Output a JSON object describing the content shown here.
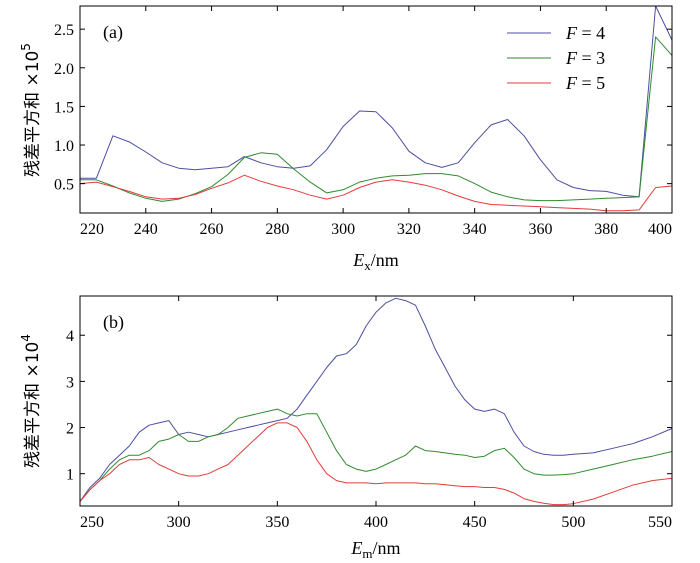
{
  "colors": {
    "blue": "#4b4fa1",
    "green": "#2f8a2f",
    "red": "#e53b3b"
  },
  "chart_data": [
    {
      "type": "line",
      "panel_label": "(a)",
      "xlabel_main": "E",
      "xlabel_sub": "x",
      "xlabel_unit": "/nm",
      "ylabel_text": "残差平方和 ×10",
      "ylabel_exp": "5",
      "xlim": [
        220,
        400
      ],
      "ylim": [
        0.12,
        2.8
      ],
      "x_ticks": [
        "220",
        "240",
        "260",
        "280",
        "300",
        "320",
        "340",
        "360",
        "380",
        "400"
      ],
      "y_ticks": [
        "0.5",
        "1.0",
        "1.5",
        "2.0",
        "2.5"
      ],
      "legend_position": "top-right",
      "series": [
        {
          "name": "F = 4",
          "name_var": "F",
          "name_rest": " = 4",
          "color": "#4b4fa1",
          "x": [
            220,
            225,
            230,
            235,
            240,
            245,
            250,
            255,
            260,
            265,
            270,
            275,
            280,
            285,
            290,
            295,
            300,
            305,
            310,
            315,
            320,
            325,
            330,
            335,
            340,
            345,
            350,
            355,
            360,
            365,
            370,
            375,
            380,
            385,
            390,
            395,
            400
          ],
          "y": [
            0.57,
            0.57,
            1.12,
            1.04,
            0.91,
            0.77,
            0.7,
            0.68,
            0.7,
            0.72,
            0.85,
            0.77,
            0.72,
            0.7,
            0.73,
            0.94,
            1.24,
            1.44,
            1.43,
            1.22,
            0.92,
            0.77,
            0.71,
            0.77,
            1.03,
            1.26,
            1.33,
            1.12,
            0.81,
            0.55,
            0.45,
            0.41,
            0.4,
            0.35,
            0.33,
            2.8,
            2.36
          ]
        },
        {
          "name": "F = 3",
          "name_var": "F",
          "name_rest": " = 3",
          "color": "#2f8a2f",
          "x": [
            220,
            225,
            230,
            235,
            240,
            245,
            250,
            255,
            260,
            265,
            270,
            275,
            280,
            285,
            290,
            295,
            300,
            305,
            310,
            315,
            320,
            325,
            330,
            335,
            340,
            345,
            350,
            355,
            360,
            365,
            370,
            375,
            380,
            385,
            390,
            395,
            400
          ],
          "y": [
            0.55,
            0.55,
            0.47,
            0.38,
            0.31,
            0.27,
            0.3,
            0.37,
            0.46,
            0.62,
            0.84,
            0.9,
            0.88,
            0.69,
            0.52,
            0.38,
            0.42,
            0.52,
            0.57,
            0.6,
            0.61,
            0.63,
            0.63,
            0.6,
            0.5,
            0.39,
            0.33,
            0.29,
            0.28,
            0.28,
            0.29,
            0.3,
            0.31,
            0.32,
            0.33,
            2.4,
            2.16
          ]
        },
        {
          "name": "F = 5",
          "name_var": "F",
          "name_rest": " = 5",
          "color": "#e53b3b",
          "x": [
            220,
            225,
            230,
            235,
            240,
            245,
            250,
            255,
            260,
            265,
            270,
            275,
            280,
            285,
            290,
            295,
            300,
            305,
            310,
            315,
            320,
            325,
            330,
            335,
            340,
            345,
            350,
            355,
            360,
            365,
            370,
            375,
            380,
            385,
            390,
            395,
            400
          ],
          "y": [
            0.5,
            0.52,
            0.46,
            0.4,
            0.33,
            0.3,
            0.31,
            0.36,
            0.44,
            0.51,
            0.61,
            0.53,
            0.47,
            0.42,
            0.35,
            0.3,
            0.35,
            0.45,
            0.52,
            0.55,
            0.52,
            0.48,
            0.42,
            0.34,
            0.27,
            0.23,
            0.22,
            0.21,
            0.2,
            0.19,
            0.18,
            0.17,
            0.15,
            0.15,
            0.16,
            0.45,
            0.47
          ]
        }
      ]
    },
    {
      "type": "line",
      "panel_label": "(b)",
      "xlabel_main": "E",
      "xlabel_sub": "m",
      "xlabel_unit": "/nm",
      "ylabel_text": "残差平方和 ×10",
      "ylabel_exp": "4",
      "xlim": [
        250,
        550
      ],
      "ylim": [
        0.3,
        4.85
      ],
      "x_ticks": [
        "250",
        "300",
        "350",
        "400",
        "450",
        "500",
        "550"
      ],
      "y_ticks": [
        "1",
        "2",
        "3",
        "4"
      ],
      "series": [
        {
          "name": "F = 4",
          "color": "#4b4fa1",
          "x": [
            250,
            255,
            260,
            265,
            270,
            275,
            280,
            285,
            290,
            295,
            300,
            305,
            310,
            315,
            320,
            325,
            330,
            335,
            340,
            345,
            350,
            355,
            360,
            365,
            370,
            375,
            380,
            385,
            390,
            395,
            400,
            405,
            410,
            415,
            420,
            425,
            430,
            435,
            440,
            445,
            450,
            455,
            460,
            465,
            470,
            475,
            480,
            485,
            490,
            495,
            500,
            510,
            520,
            530,
            540,
            550
          ],
          "y": [
            0.4,
            0.7,
            0.9,
            1.2,
            1.4,
            1.6,
            1.9,
            2.05,
            2.1,
            2.15,
            1.85,
            1.9,
            1.85,
            1.8,
            1.85,
            1.9,
            1.95,
            2.0,
            2.05,
            2.1,
            2.15,
            2.2,
            2.4,
            2.7,
            3.0,
            3.3,
            3.55,
            3.6,
            3.8,
            4.2,
            4.5,
            4.7,
            4.8,
            4.75,
            4.65,
            4.2,
            3.7,
            3.3,
            2.9,
            2.6,
            2.4,
            2.35,
            2.4,
            2.3,
            1.9,
            1.6,
            1.48,
            1.42,
            1.4,
            1.4,
            1.42,
            1.45,
            1.55,
            1.65,
            1.8,
            1.98
          ]
        },
        {
          "name": "F = 3",
          "color": "#2f8a2f",
          "x": [
            250,
            255,
            260,
            265,
            270,
            275,
            280,
            285,
            290,
            295,
            300,
            305,
            310,
            315,
            320,
            325,
            330,
            335,
            340,
            345,
            350,
            355,
            360,
            365,
            370,
            375,
            380,
            385,
            390,
            395,
            400,
            405,
            410,
            415,
            420,
            425,
            430,
            435,
            440,
            445,
            450,
            455,
            460,
            465,
            470,
            475,
            480,
            485,
            490,
            495,
            500,
            510,
            520,
            530,
            540,
            550
          ],
          "y": [
            0.4,
            0.65,
            0.85,
            1.1,
            1.3,
            1.4,
            1.4,
            1.5,
            1.7,
            1.75,
            1.85,
            1.7,
            1.7,
            1.8,
            1.85,
            2.0,
            2.2,
            2.25,
            2.3,
            2.35,
            2.4,
            2.3,
            2.25,
            2.3,
            2.3,
            1.9,
            1.5,
            1.2,
            1.1,
            1.05,
            1.1,
            1.2,
            1.3,
            1.4,
            1.6,
            1.5,
            1.48,
            1.45,
            1.42,
            1.4,
            1.35,
            1.38,
            1.5,
            1.55,
            1.35,
            1.1,
            1.0,
            0.97,
            0.97,
            0.98,
            1.0,
            1.1,
            1.2,
            1.3,
            1.38,
            1.48
          ]
        },
        {
          "name": "F = 5",
          "color": "#e53b3b",
          "x": [
            250,
            255,
            260,
            265,
            270,
            275,
            280,
            285,
            290,
            295,
            300,
            305,
            310,
            315,
            320,
            325,
            330,
            335,
            340,
            345,
            350,
            355,
            360,
            365,
            370,
            375,
            380,
            385,
            390,
            395,
            400,
            405,
            410,
            415,
            420,
            425,
            430,
            435,
            440,
            445,
            450,
            455,
            460,
            465,
            470,
            475,
            480,
            485,
            490,
            495,
            500,
            510,
            520,
            530,
            540,
            550
          ],
          "y": [
            0.4,
            0.65,
            0.85,
            1.0,
            1.2,
            1.3,
            1.3,
            1.35,
            1.2,
            1.1,
            1.0,
            0.95,
            0.95,
            1.0,
            1.1,
            1.2,
            1.4,
            1.6,
            1.8,
            2.0,
            2.1,
            2.1,
            2.0,
            1.7,
            1.3,
            1.0,
            0.85,
            0.8,
            0.8,
            0.8,
            0.78,
            0.8,
            0.8,
            0.8,
            0.8,
            0.78,
            0.78,
            0.76,
            0.74,
            0.72,
            0.72,
            0.7,
            0.7,
            0.66,
            0.58,
            0.46,
            0.4,
            0.36,
            0.33,
            0.33,
            0.35,
            0.45,
            0.6,
            0.75,
            0.85,
            0.9
          ]
        }
      ]
    }
  ]
}
